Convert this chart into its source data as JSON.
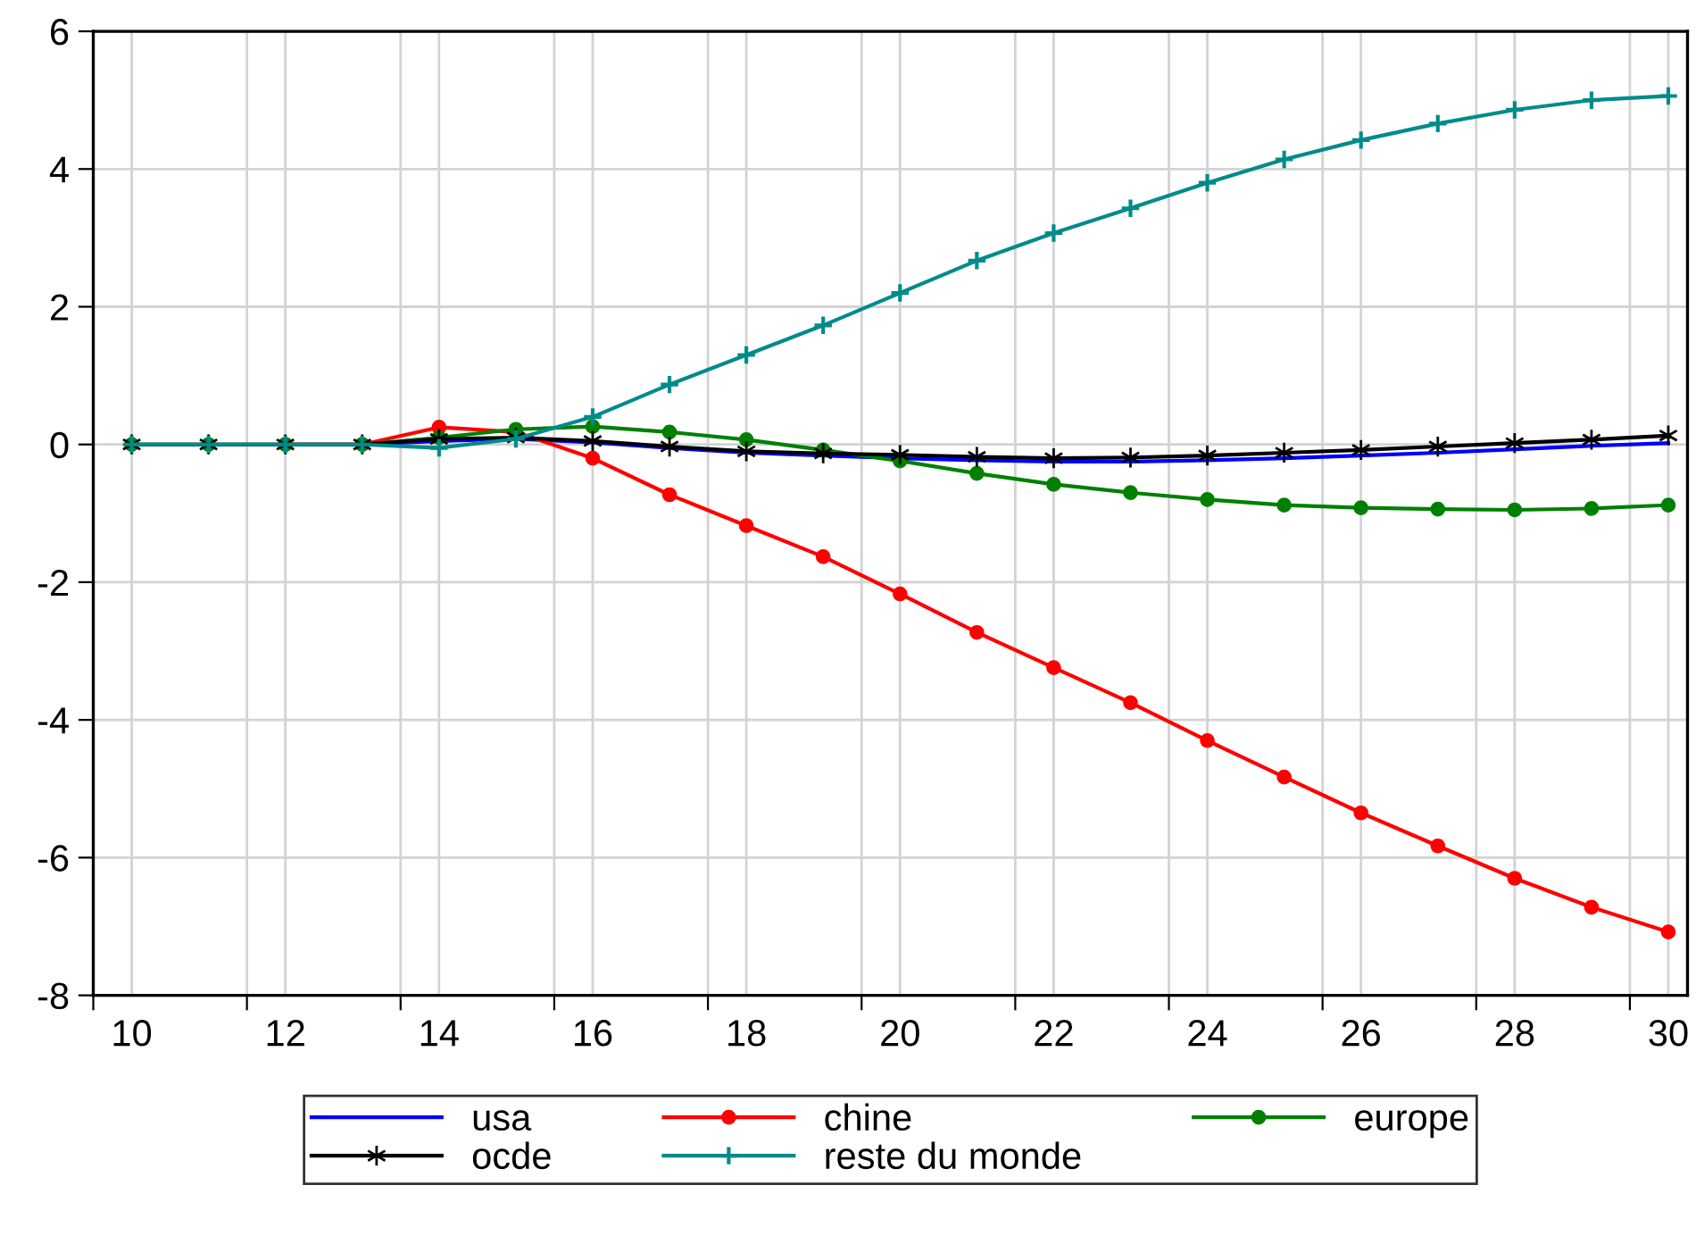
{
  "chart_data": {
    "type": "line",
    "x": [
      10,
      11,
      12,
      13,
      14,
      15,
      16,
      17,
      18,
      19,
      20,
      21,
      22,
      23,
      24,
      25,
      26,
      27,
      28,
      29,
      30
    ],
    "series": [
      {
        "name": "usa",
        "color": "#0000ff",
        "marker": "none",
        "values": [
          null,
          null,
          null,
          0,
          0.05,
          0.08,
          0.03,
          -0.05,
          -0.12,
          -0.16,
          -0.2,
          -0.23,
          -0.25,
          -0.25,
          -0.23,
          -0.2,
          -0.16,
          -0.12,
          -0.07,
          -0.02,
          0.02
        ]
      },
      {
        "name": "chine",
        "color": "#ff0000",
        "marker": "circle",
        "values": [
          null,
          null,
          0,
          0,
          0.25,
          0.18,
          -0.2,
          -0.73,
          -1.18,
          -1.63,
          -2.17,
          -2.73,
          -3.24,
          -3.75,
          -4.3,
          -4.83,
          -5.35,
          -5.83,
          -6.3,
          -6.72,
          -7.08
        ]
      },
      {
        "name": "europe",
        "color": "#008000",
        "marker": "circle",
        "values": [
          0,
          0,
          0,
          0,
          0.1,
          0.22,
          0.26,
          0.18,
          0.07,
          -0.08,
          -0.24,
          -0.42,
          -0.58,
          -0.7,
          -0.8,
          -0.88,
          -0.92,
          -0.94,
          -0.95,
          -0.93,
          -0.88
        ]
      },
      {
        "name": "ocde",
        "color": "#000000",
        "marker": "cross",
        "values": [
          0,
          0,
          0,
          0,
          0.08,
          0.1,
          0.05,
          -0.03,
          -0.1,
          -0.13,
          -0.15,
          -0.18,
          -0.2,
          -0.19,
          -0.16,
          -0.12,
          -0.08,
          -0.03,
          0.02,
          0.07,
          0.13
        ]
      },
      {
        "name": "reste du monde",
        "color": "#008b8b",
        "marker": "plus",
        "values": [
          0,
          0,
          0,
          0,
          -0.05,
          0.08,
          0.4,
          0.87,
          1.3,
          1.73,
          2.2,
          2.67,
          3.07,
          3.43,
          3.8,
          4.14,
          4.42,
          4.66,
          4.86,
          5.0,
          5.06
        ]
      }
    ],
    "xlim": [
      9.5,
      30.25
    ],
    "xticks": [
      {
        "value": 9.5,
        "label": null
      },
      {
        "value": 10,
        "label": "10"
      },
      {
        "value": 11.5,
        "label": null
      },
      {
        "value": 12,
        "label": "12"
      },
      {
        "value": 13.5,
        "label": null
      },
      {
        "value": 14,
        "label": "14"
      },
      {
        "value": 15.5,
        "label": null
      },
      {
        "value": 16,
        "label": "16"
      },
      {
        "value": 17.5,
        "label": null
      },
      {
        "value": 18,
        "label": "18"
      },
      {
        "value": 19.5,
        "label": null
      },
      {
        "value": 20,
        "label": "20"
      },
      {
        "value": 21.5,
        "label": null
      },
      {
        "value": 22,
        "label": "22"
      },
      {
        "value": 23.5,
        "label": null
      },
      {
        "value": 24,
        "label": "24"
      },
      {
        "value": 25.5,
        "label": null
      },
      {
        "value": 26,
        "label": "26"
      },
      {
        "value": 27.5,
        "label": null
      },
      {
        "value": 28,
        "label": "28"
      },
      {
        "value": 29.5,
        "label": null
      },
      {
        "value": 30,
        "label": "30"
      }
    ],
    "ylim": [
      -8,
      6
    ],
    "yticks": [
      -8,
      -6,
      -4,
      -2,
      0,
      2,
      4,
      6
    ],
    "grid": true,
    "legend": "bottom",
    "line_style": "solid"
  }
}
